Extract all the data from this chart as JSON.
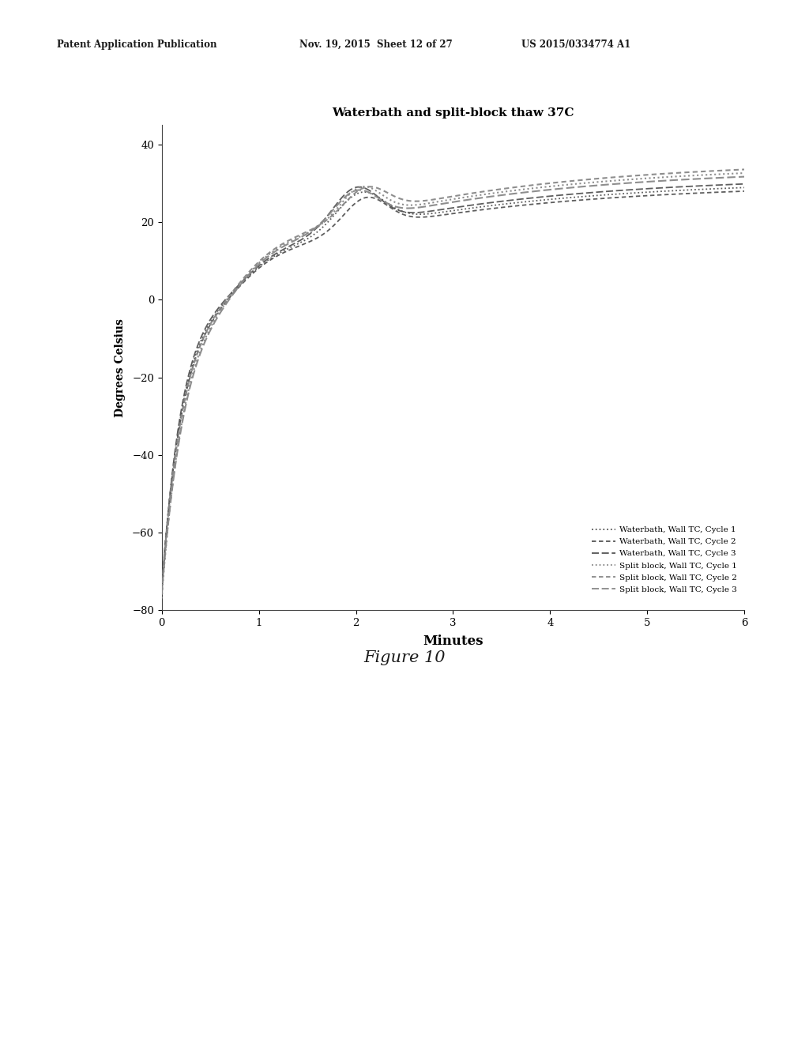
{
  "title": "Waterbath and split-block thaw 37C",
  "xlabel": "Minutes",
  "ylabel": "Degrees Celsius",
  "xlim": [
    0,
    6
  ],
  "ylim": [
    -80,
    45
  ],
  "yticks": [
    -80,
    -60,
    -40,
    -20,
    0,
    20,
    40
  ],
  "xticks": [
    0,
    1,
    2,
    3,
    4,
    5,
    6
  ],
  "header_left": "Patent Application Publication",
  "header_mid": "Nov. 19, 2015  Sheet 12 of 27",
  "header_right": "US 2015/0334774 A1",
  "figure_label": "Figure 10",
  "legend_entries": [
    "Waterbath, Wall TC, Cycle 1",
    "Waterbath, Wall TC, Cycle 2",
    "Waterbath, Wall TC, Cycle 3",
    "Split block, Wall TC, Cycle 1",
    "Split block, Wall TC, Cycle 2",
    "Split block, Wall TC, Cycle 3"
  ],
  "background_color": "#ffffff",
  "gray1": "#555555",
  "gray2": "#888888"
}
